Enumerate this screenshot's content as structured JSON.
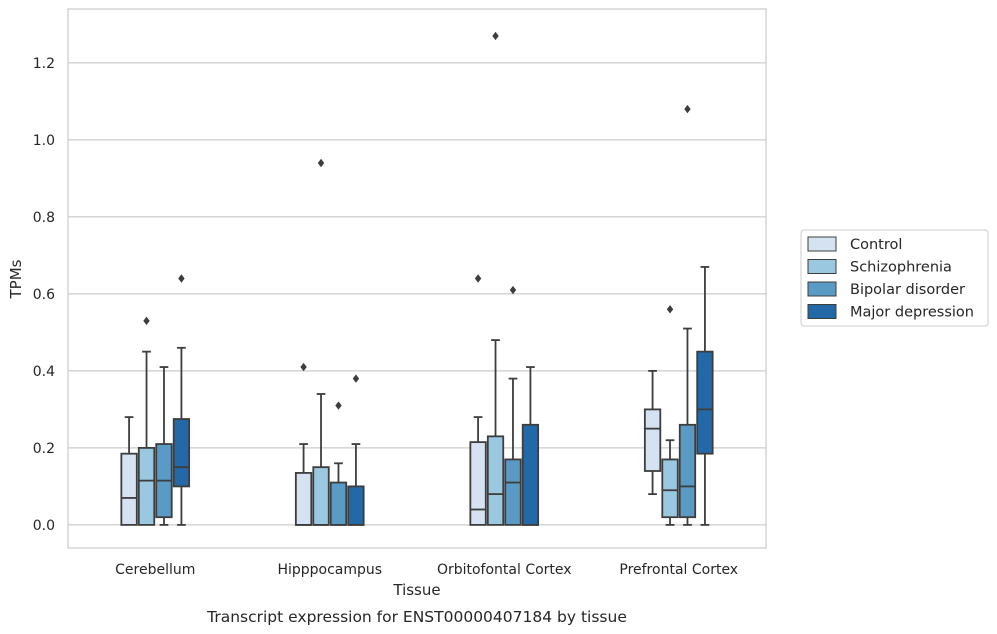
{
  "caption": "Transcript expression for ENST00000407184 by tissue",
  "chart_data": {
    "type": "box",
    "xlabel": "Tissue",
    "ylabel": "TPMs",
    "ylim": [
      -0.06,
      1.34
    ],
    "yticks": [
      0.0,
      0.2,
      0.4,
      0.6,
      0.8,
      1.0,
      1.2
    ],
    "ytick_labels": [
      "0.0",
      "0.2",
      "0.4",
      "0.6",
      "0.8",
      "1.0",
      "1.2"
    ],
    "grid": "horizontal",
    "legend_position": "outside-right",
    "categories": [
      "Cerebellum",
      "Hipppocampus",
      "Orbitofontal Cortex",
      "Prefrontal Cortex"
    ],
    "series": [
      {
        "name": "Control",
        "color": "#d4e2f2",
        "boxes": [
          {
            "whislo": 0.0,
            "q1": 0.0,
            "med": 0.07,
            "q3": 0.185,
            "whishi": 0.28,
            "fliers": []
          },
          {
            "whislo": 0.0,
            "q1": 0.0,
            "med": 0.0,
            "q3": 0.135,
            "whishi": 0.21,
            "fliers": [
              0.41
            ]
          },
          {
            "whislo": 0.0,
            "q1": 0.0,
            "med": 0.04,
            "q3": 0.215,
            "whishi": 0.28,
            "fliers": [
              0.64
            ]
          },
          {
            "whislo": 0.08,
            "q1": 0.14,
            "med": 0.25,
            "q3": 0.3,
            "whishi": 0.4,
            "fliers": []
          }
        ]
      },
      {
        "name": "Schizophrenia",
        "color": "#9ac8e0",
        "boxes": [
          {
            "whislo": 0.0,
            "q1": 0.0,
            "med": 0.115,
            "q3": 0.2,
            "whishi": 0.45,
            "fliers": [
              0.53
            ]
          },
          {
            "whislo": 0.0,
            "q1": 0.0,
            "med": 0.0,
            "q3": 0.15,
            "whishi": 0.34,
            "fliers": [
              0.94
            ]
          },
          {
            "whislo": 0.0,
            "q1": 0.0,
            "med": 0.08,
            "q3": 0.23,
            "whishi": 0.48,
            "fliers": [
              1.27
            ]
          },
          {
            "whislo": 0.0,
            "q1": 0.02,
            "med": 0.09,
            "q3": 0.17,
            "whishi": 0.22,
            "fliers": [
              0.56
            ]
          }
        ]
      },
      {
        "name": "Bipolar disorder",
        "color": "#5a9bc6",
        "boxes": [
          {
            "whislo": 0.0,
            "q1": 0.02,
            "med": 0.115,
            "q3": 0.21,
            "whishi": 0.41,
            "fliers": []
          },
          {
            "whislo": 0.0,
            "q1": 0.0,
            "med": 0.0,
            "q3": 0.11,
            "whishi": 0.16,
            "fliers": [
              0.31
            ]
          },
          {
            "whislo": 0.0,
            "q1": 0.0,
            "med": 0.11,
            "q3": 0.17,
            "whishi": 0.38,
            "fliers": [
              0.61
            ]
          },
          {
            "whislo": 0.0,
            "q1": 0.02,
            "med": 0.1,
            "q3": 0.26,
            "whishi": 0.51,
            "fliers": [
              1.08
            ]
          }
        ]
      },
      {
        "name": "Major depression",
        "color": "#2369a8",
        "boxes": [
          {
            "whislo": 0.0,
            "q1": 0.1,
            "med": 0.15,
            "q3": 0.275,
            "whishi": 0.46,
            "fliers": [
              0.64
            ]
          },
          {
            "whislo": 0.0,
            "q1": 0.0,
            "med": 0.0,
            "q3": 0.1,
            "whishi": 0.21,
            "fliers": [
              0.38
            ]
          },
          {
            "whislo": 0.0,
            "q1": 0.0,
            "med": 0.0,
            "q3": 0.26,
            "whishi": 0.41,
            "fliers": []
          },
          {
            "whislo": 0.0,
            "q1": 0.185,
            "med": 0.3,
            "q3": 0.45,
            "whishi": 0.67,
            "fliers": []
          }
        ]
      }
    ]
  }
}
